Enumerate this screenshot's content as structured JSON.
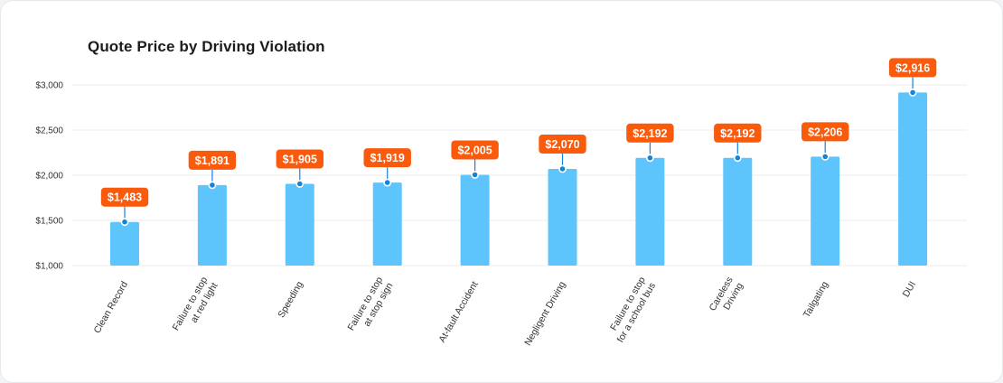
{
  "chart_data": {
    "type": "bar",
    "title": "Quote Price by Driving Violation",
    "xlabel": "",
    "ylabel": "",
    "ylim": [
      1000,
      3000
    ],
    "yticks": [
      "$1,000",
      "$1,500",
      "$2,000",
      "$2,500",
      "$3,000"
    ],
    "ytick_values": [
      1000,
      1500,
      2000,
      2500,
      3000
    ],
    "grid": true,
    "categories": [
      [
        "Clean Record"
      ],
      [
        "Failure to stop",
        "at red light"
      ],
      [
        "Speeding"
      ],
      [
        "Failure to stop",
        "at stop sign"
      ],
      [
        "At-fault Accident"
      ],
      [
        "Negligent Driving"
      ],
      [
        "Failure to stop",
        "for a school bus"
      ],
      [
        "Careless",
        "Driving"
      ],
      [
        "Tailgating"
      ],
      [
        "DUI"
      ]
    ],
    "values": [
      1483,
      1891,
      1905,
      1919,
      2005,
      2070,
      2192,
      2192,
      2206,
      2916
    ],
    "value_labels": [
      "$1,483",
      "$1,891",
      "$1,905",
      "$1,919",
      "$2,005",
      "$2,070",
      "$2,192",
      "$2,192",
      "$2,206",
      "$2,916"
    ]
  },
  "colors": {
    "bar": "#5ec4fc",
    "label_bg": "#f95a0c",
    "marker": "#1583d8",
    "grid": "#ececec"
  }
}
